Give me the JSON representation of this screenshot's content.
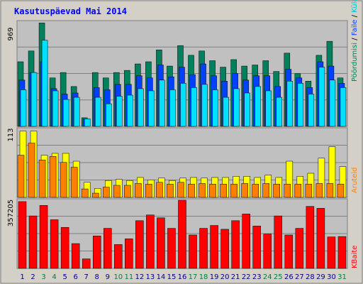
{
  "title": "Kasutuspäevad Mai 2014",
  "legend": {
    "visits": "Pöördumisi",
    "files": "Faile",
    "hits": "Külastajaid",
    "sites": "Aruteid",
    "kbytes": "KBaite"
  },
  "colors": {
    "hits": "#00805c",
    "files": "#0040ff",
    "visits": "#00e0ff",
    "sites_bar": "#ffff00",
    "sites_bar2": "#ff8000",
    "kbytes": "#ff0000",
    "weekend_label": "#008040",
    "weekday_label": "#000080",
    "panel_bg": "#c0c0c0",
    "frame_bg": "#d4d0c8"
  },
  "chart_data": [
    {
      "type": "bar",
      "panel": "top",
      "ylim": [
        0,
        969
      ],
      "ytick_label": "969",
      "categories": [
        "1",
        "2",
        "3",
        "4",
        "5",
        "6",
        "7",
        "8",
        "9",
        "10",
        "11",
        "12",
        "13",
        "14",
        "15",
        "16",
        "17",
        "18",
        "19",
        "20",
        "21",
        "22",
        "23",
        "24",
        "25",
        "26",
        "27",
        "28",
        "29",
        "30",
        "31"
      ],
      "series": [
        {
          "name": "Pöördumisi",
          "values": [
            600,
            700,
            960,
            450,
            500,
            370,
            80,
            500,
            450,
            500,
            520,
            580,
            600,
            710,
            560,
            750,
            660,
            700,
            610,
            550,
            620,
            560,
            570,
            610,
            510,
            680,
            490,
            420,
            660,
            790,
            450
          ]
        },
        {
          "name": "Faile",
          "values": [
            430,
            500,
            600,
            350,
            300,
            310,
            70,
            360,
            340,
            390,
            390,
            470,
            450,
            570,
            460,
            550,
            480,
            580,
            470,
            420,
            490,
            430,
            470,
            470,
            370,
            530,
            450,
            360,
            600,
            560,
            400
          ]
        },
        {
          "name": "Külastajaid",
          "values": [
            340,
            500,
            800,
            330,
            250,
            270,
            70,
            270,
            210,
            280,
            290,
            350,
            330,
            430,
            340,
            400,
            360,
            390,
            340,
            270,
            350,
            310,
            370,
            330,
            270,
            420,
            400,
            300,
            550,
            430,
            360
          ]
        }
      ]
    },
    {
      "type": "bar",
      "panel": "middle",
      "ylim": [
        0,
        113
      ],
      "ytick_label": "113",
      "categories": [
        "1",
        "2",
        "3",
        "4",
        "5",
        "6",
        "7",
        "8",
        "9",
        "10",
        "11",
        "12",
        "13",
        "14",
        "15",
        "16",
        "17",
        "18",
        "19",
        "20",
        "21",
        "22",
        "23",
        "24",
        "25",
        "26",
        "27",
        "28",
        "29",
        "30",
        "31"
      ],
      "series": [
        {
          "name": "Aruteid",
          "values": [
            110,
            110,
            70,
            73,
            73,
            60,
            25,
            15,
            28,
            30,
            28,
            33,
            29,
            32,
            28,
            32,
            33,
            32,
            33,
            33,
            35,
            35,
            33,
            37,
            33,
            60,
            35,
            40,
            65,
            84,
            51
          ]
        },
        {
          "name": "Aruteid",
          "values": [
            70,
            90,
            62,
            68,
            58,
            50,
            14,
            7,
            17,
            20,
            20,
            23,
            22,
            25,
            22,
            25,
            22,
            23,
            22,
            22,
            22,
            23,
            22,
            23,
            22,
            22,
            22,
            22,
            23,
            23,
            22
          ]
        }
      ]
    },
    {
      "type": "bar",
      "panel": "bottom",
      "ylim": [
        0,
        357205
      ],
      "ytick_label": "357205",
      "categories": [
        "1",
        "2",
        "3",
        "4",
        "5",
        "6",
        "7",
        "8",
        "9",
        "10",
        "11",
        "12",
        "13",
        "14",
        "15",
        "16",
        "17",
        "18",
        "19",
        "20",
        "21",
        "22",
        "23",
        "24",
        "25",
        "26",
        "27",
        "28",
        "29",
        "30",
        "31"
      ],
      "series": [
        {
          "name": "KBaite",
          "values": [
            350000,
            275000,
            330000,
            255000,
            215000,
            130000,
            50000,
            170000,
            210000,
            125000,
            155000,
            250000,
            280000,
            265000,
            210000,
            357205,
            175000,
            210000,
            225000,
            205000,
            250000,
            285000,
            222000,
            180000,
            275000,
            175000,
            210000,
            325000,
            315000,
            165000,
            167000
          ]
        }
      ]
    }
  ]
}
